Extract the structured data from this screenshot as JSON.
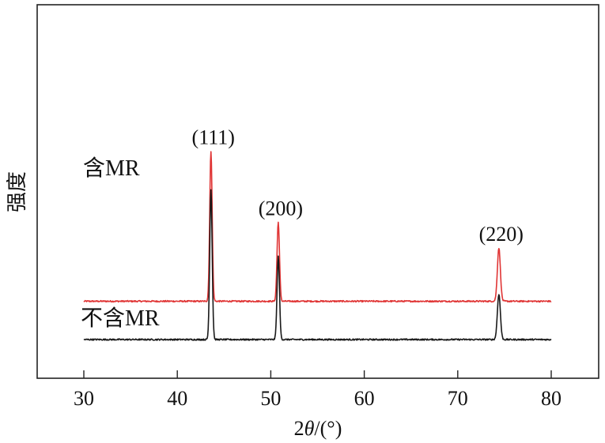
{
  "chart_data": {
    "type": "line",
    "xlabel_prefix": "2",
    "xlabel_theta": "θ",
    "xlabel_suffix": "/(°)",
    "ylabel": "强度",
    "xlim": [
      25,
      85
    ],
    "x_ticks": [
      30,
      40,
      50,
      60,
      70,
      80
    ],
    "x_tick_labels": [
      "30",
      "40",
      "50",
      "60",
      "70",
      "80"
    ],
    "y_ticks_shown": false,
    "grid": false,
    "series": [
      {
        "name": "含MR",
        "color": "#e03535",
        "x_range": [
          30,
          80
        ],
        "baseline": 0.97,
        "noise": 0.018,
        "peaks": [
          {
            "x": 43.6,
            "height": 3.8,
            "width": 0.13
          },
          {
            "x": 50.8,
            "height": 2.0,
            "width": 0.13
          },
          {
            "x": 74.4,
            "height": 1.35,
            "width": 0.16
          }
        ]
      },
      {
        "name": "不含MR",
        "color": "#1a1a1a",
        "x_range": [
          30,
          80
        ],
        "baseline": 0.0,
        "noise": 0.018,
        "peaks": [
          {
            "x": 43.6,
            "height": 3.8,
            "width": 0.13
          },
          {
            "x": 50.8,
            "height": 2.1,
            "width": 0.13
          },
          {
            "x": 74.4,
            "height": 1.15,
            "width": 0.16
          }
        ]
      }
    ],
    "peak_labels": [
      {
        "text": "(111)",
        "x": 43.6
      },
      {
        "text": "(200)",
        "x": 50.8
      },
      {
        "text": "(220)",
        "x": 74.4
      }
    ]
  }
}
